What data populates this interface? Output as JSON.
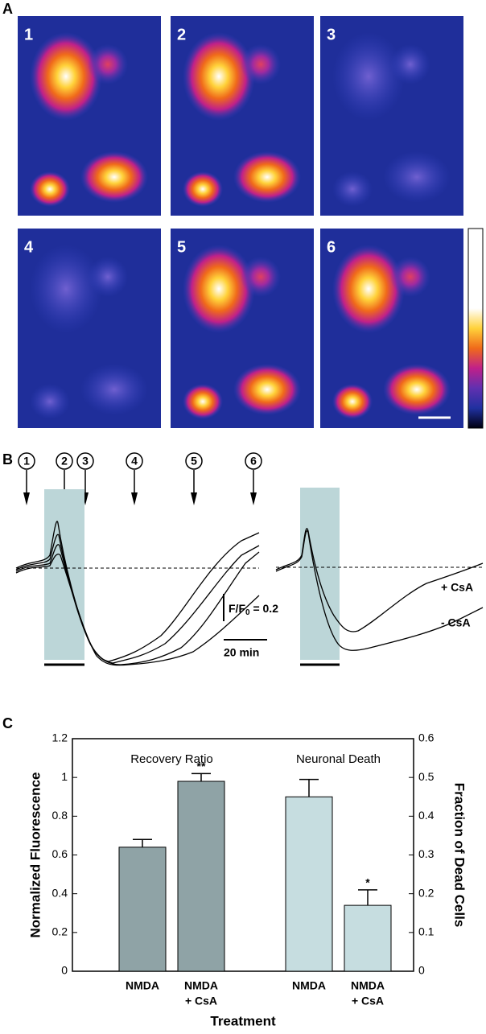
{
  "panel_labels": [
    "A",
    "B",
    "C"
  ],
  "panel_a": {
    "image_labels": [
      "1",
      "2",
      "3",
      "4",
      "5",
      "6"
    ]
  },
  "panel_b": {
    "time_points": [
      "1",
      "2",
      "3",
      "4",
      "5",
      "6"
    ],
    "scale_label": {
      "main": "F/F",
      "sub": "0",
      "rest": " = 0.2"
    },
    "time_scale": "20 min",
    "trace_labels": [
      "+ CsA",
      "- CsA"
    ]
  },
  "chart_data": {
    "type": "bar",
    "categories": [
      [
        "NMDA"
      ],
      [
        "NMDA",
        "+ CsA"
      ],
      [
        "NMDA"
      ],
      [
        "NMDA",
        "+ CsA"
      ]
    ],
    "series": [
      {
        "name": "Recovery Ratio",
        "color": "#8fa3a6",
        "axis": "y",
        "values": [
          0.64,
          0.98,
          null,
          null
        ],
        "errors": [
          0.04,
          0.04,
          null,
          null
        ],
        "annotations": [
          null,
          "**",
          null,
          null
        ]
      },
      {
        "name": "Neuronal Death",
        "color": "#c6dde0",
        "axis": "y2",
        "values": [
          null,
          null,
          0.45,
          0.17
        ],
        "errors": [
          null,
          null,
          0.045,
          0.04
        ],
        "annotations": [
          null,
          null,
          null,
          "*"
        ]
      }
    ],
    "ylabel": "Normalized Fluorescence",
    "y2label": "Fraction of Dead Cells",
    "xlabel": "Treatment",
    "ylim": [
      0,
      1.2
    ],
    "yticks": [
      0,
      0.2,
      0.4,
      0.6,
      0.8,
      1,
      1.2
    ],
    "y2lim": [
      0,
      0.6
    ],
    "y2ticks": [
      0,
      0.1,
      0.2,
      0.3,
      0.4,
      0.5,
      0.6
    ],
    "grid": false
  }
}
